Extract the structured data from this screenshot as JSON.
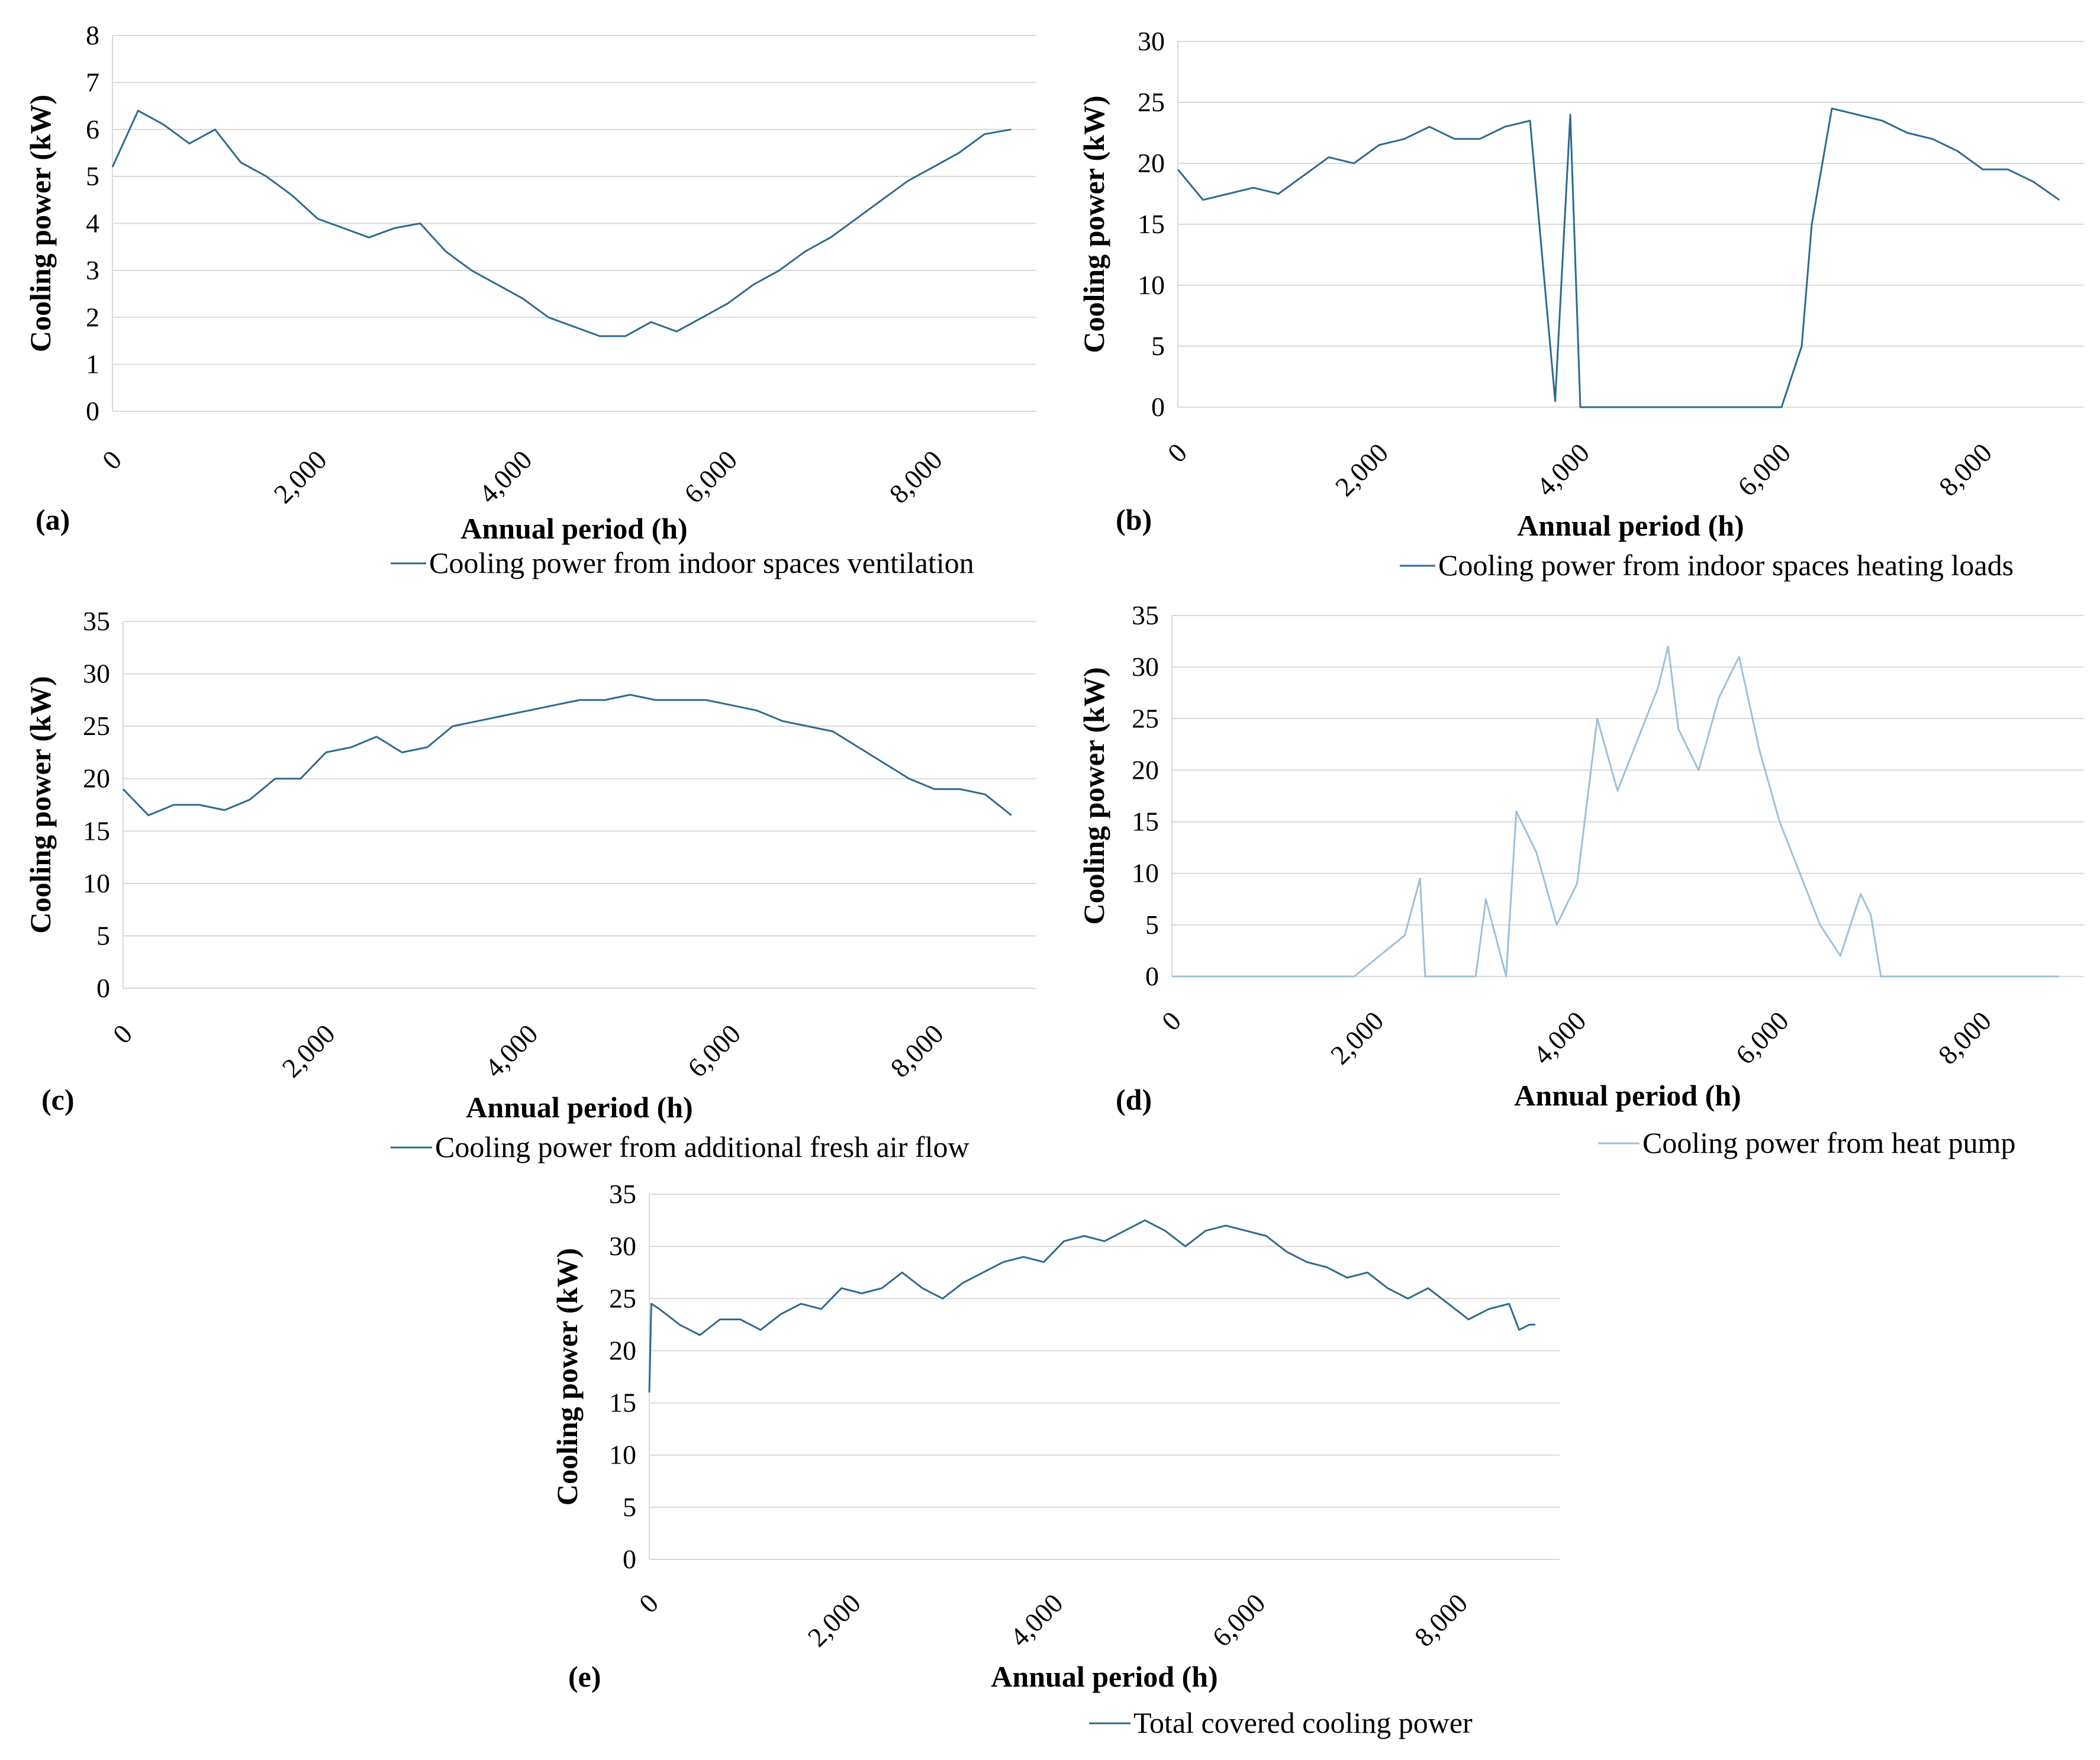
{
  "chart_data": [
    {
      "id": "a",
      "type": "line",
      "panel_label": "(a)",
      "xlabel": "Annual period (h)",
      "ylabel": "Cooling power (kW)",
      "xlim": [
        0,
        9000
      ],
      "ylim": [
        0,
        8
      ],
      "x_ticks": [
        0,
        2000,
        4000,
        6000,
        8000
      ],
      "x_tick_labels": [
        "0",
        "2,000",
        "4,000",
        "6,000",
        "8,000"
      ],
      "y_ticks": [
        0,
        1,
        2,
        3,
        4,
        5,
        6,
        7,
        8
      ],
      "y_tick_labels": [
        "0",
        "1",
        "2",
        "3",
        "4",
        "5",
        "6",
        "7",
        "8"
      ],
      "legend": "Cooling power from indoor spaces ventilation",
      "color": "#2e6a8e",
      "series": [
        {
          "name": "Cooling power from indoor spaces ventilation",
          "x": [
            0,
            250,
            500,
            750,
            1000,
            1250,
            1500,
            1750,
            2000,
            2250,
            2500,
            2750,
            3000,
            3250,
            3500,
            3750,
            4000,
            4250,
            4500,
            4750,
            5000,
            5250,
            5500,
            5750,
            6000,
            6250,
            6500,
            6750,
            7000,
            7250,
            7500,
            7750,
            8000,
            8250,
            8500,
            8760
          ],
          "y": [
            5.2,
            6.4,
            6.1,
            5.7,
            6.0,
            5.3,
            5.0,
            4.6,
            4.1,
            3.9,
            3.7,
            3.9,
            4.0,
            3.4,
            3.0,
            2.7,
            2.4,
            2.0,
            1.8,
            1.6,
            1.6,
            1.9,
            1.7,
            2.0,
            2.3,
            2.7,
            3.0,
            3.4,
            3.7,
            4.1,
            4.5,
            4.9,
            5.2,
            5.5,
            5.9,
            6.0
          ]
        }
      ]
    },
    {
      "id": "b",
      "type": "line",
      "panel_label": "(b)",
      "xlabel": "Annual period (h)",
      "ylabel": "Cooling power (kW)",
      "xlim": [
        0,
        9000
      ],
      "ylim": [
        0,
        30
      ],
      "x_ticks": [
        0,
        2000,
        4000,
        6000,
        8000
      ],
      "x_tick_labels": [
        "0",
        "2,000",
        "4,000",
        "6,000",
        "8,000"
      ],
      "y_ticks": [
        0,
        5,
        10,
        15,
        20,
        25,
        30
      ],
      "y_tick_labels": [
        "0",
        "5",
        "10",
        "15",
        "20",
        "25",
        "30"
      ],
      "legend": "Cooling power from indoor spaces heating loads",
      "color": "#2e6a8e",
      "series": [
        {
          "name": "Cooling power from indoor spaces heating loads",
          "x": [
            0,
            250,
            500,
            750,
            1000,
            1250,
            1500,
            1750,
            2000,
            2250,
            2500,
            2750,
            3000,
            3250,
            3500,
            3750,
            3900,
            4000,
            6000,
            6200,
            6300,
            6500,
            6750,
            7000,
            7250,
            7500,
            7750,
            8000,
            8250,
            8500,
            8760
          ],
          "y": [
            19.5,
            17.0,
            17.5,
            18.0,
            17.5,
            19.0,
            20.5,
            20.0,
            21.5,
            22.0,
            23.0,
            22.0,
            22.0,
            23.0,
            23.5,
            0.5,
            24.0,
            0,
            0,
            5.0,
            15.0,
            24.5,
            24.0,
            23.5,
            22.5,
            22.0,
            21.0,
            19.5,
            19.5,
            18.5,
            17.0
          ]
        }
      ]
    },
    {
      "id": "c",
      "type": "line",
      "panel_label": "(c)",
      "xlabel": "Annual period (h)",
      "ylabel": "Cooling power (kW)",
      "xlim": [
        0,
        9000
      ],
      "ylim": [
        0,
        35
      ],
      "x_ticks": [
        0,
        2000,
        4000,
        6000,
        8000
      ],
      "x_tick_labels": [
        "0",
        "2,000",
        "4,000",
        "6,000",
        "8,000"
      ],
      "y_ticks": [
        0,
        5,
        10,
        15,
        20,
        25,
        30,
        35
      ],
      "y_tick_labels": [
        "0",
        "5",
        "10",
        "15",
        "20",
        "25",
        "30",
        "35"
      ],
      "legend": "Cooling power from additional fresh air flow",
      "color": "#2e6a8e",
      "series": [
        {
          "name": "Cooling power from additional fresh air flow",
          "x": [
            0,
            250,
            500,
            750,
            1000,
            1250,
            1500,
            1750,
            2000,
            2250,
            2500,
            2750,
            3000,
            3250,
            3500,
            3750,
            4000,
            4250,
            4500,
            4750,
            5000,
            5250,
            5500,
            5750,
            6000,
            6250,
            6500,
            6750,
            7000,
            7250,
            7500,
            7750,
            8000,
            8250,
            8500,
            8760
          ],
          "y": [
            19.0,
            16.5,
            17.5,
            17.5,
            17.0,
            18.0,
            20.0,
            20.0,
            22.5,
            23.0,
            24.0,
            22.5,
            23.0,
            25.0,
            25.5,
            26.0,
            26.5,
            27.0,
            27.5,
            27.5,
            28.0,
            27.5,
            27.5,
            27.5,
            27.0,
            26.5,
            25.5,
            25.0,
            24.5,
            23.0,
            21.5,
            20.0,
            19.0,
            19.0,
            18.5,
            16.5
          ]
        }
      ]
    },
    {
      "id": "d",
      "type": "line",
      "panel_label": "(d)",
      "xlabel": "Annual period (h)",
      "ylabel": "Cooling power (kW)",
      "xlim": [
        0,
        9000
      ],
      "ylim": [
        0,
        35
      ],
      "x_ticks": [
        0,
        2000,
        4000,
        6000,
        8000
      ],
      "x_tick_labels": [
        "0",
        "2,000",
        "4,000",
        "6,000",
        "8,000"
      ],
      "y_ticks": [
        0,
        5,
        10,
        15,
        20,
        25,
        30,
        35
      ],
      "y_tick_labels": [
        "0",
        "5",
        "10",
        "15",
        "20",
        "25",
        "30",
        "35"
      ],
      "legend": "Cooling power from heat pump",
      "color": "#9fc0d8",
      "series": [
        {
          "name": "Cooling power from heat pump",
          "x": [
            0,
            1800,
            2300,
            2450,
            2500,
            3000,
            3100,
            3300,
            3400,
            3600,
            3800,
            4000,
            4200,
            4400,
            4600,
            4800,
            4900,
            5000,
            5200,
            5400,
            5600,
            5800,
            6000,
            6200,
            6400,
            6600,
            6800,
            6900,
            7000,
            8760
          ],
          "y": [
            0,
            0,
            4.0,
            9.5,
            0,
            0,
            7.5,
            0,
            16.0,
            12.0,
            5.0,
            9.0,
            25.0,
            18.0,
            23.0,
            28.0,
            32.0,
            24.0,
            20.0,
            27.0,
            31.0,
            22.0,
            15.0,
            10.0,
            5.0,
            2.0,
            8.0,
            6.0,
            0,
            0
          ]
        }
      ]
    },
    {
      "id": "e",
      "type": "line",
      "panel_label": "(e)",
      "xlabel": "Annual period (h)",
      "ylabel": "Cooling power (kW)",
      "xlim": [
        0,
        9000
      ],
      "ylim": [
        0,
        35
      ],
      "x_ticks": [
        0,
        2000,
        4000,
        6000,
        8000
      ],
      "x_tick_labels": [
        "0",
        "2,000",
        "4,000",
        "6,000",
        "8,000"
      ],
      "y_ticks": [
        0,
        5,
        10,
        15,
        20,
        25,
        30,
        35
      ],
      "y_tick_labels": [
        "0",
        "5",
        "10",
        "15",
        "20",
        "25",
        "30",
        "35"
      ],
      "legend": "Total covered cooling power",
      "color": "#2e6a8e",
      "series": [
        {
          "name": "Total covered cooling power",
          "x": [
            0,
            20,
            100,
            300,
            500,
            700,
            900,
            1100,
            1300,
            1500,
            1700,
            1900,
            2100,
            2300,
            2500,
            2700,
            2900,
            3100,
            3300,
            3500,
            3700,
            3900,
            4100,
            4300,
            4500,
            4700,
            4900,
            5100,
            5300,
            5500,
            5700,
            5900,
            6100,
            6300,
            6500,
            6700,
            6900,
            7100,
            7300,
            7500,
            7700,
            7900,
            8100,
            8300,
            8500,
            8600,
            8700,
            8760
          ],
          "y": [
            16.0,
            24.5,
            24.0,
            22.5,
            21.5,
            23.0,
            23.0,
            22.0,
            23.5,
            24.5,
            24.0,
            26.0,
            25.5,
            26.0,
            27.5,
            26.0,
            25.0,
            26.5,
            27.5,
            28.5,
            29.0,
            28.5,
            30.5,
            31.0,
            30.5,
            31.5,
            32.5,
            31.5,
            30.0,
            31.5,
            32.0,
            31.5,
            31.0,
            29.5,
            28.5,
            28.0,
            27.0,
            27.5,
            26.0,
            25.0,
            26.0,
            24.5,
            23.0,
            24.0,
            24.5,
            22.0,
            22.5,
            22.5
          ]
        }
      ]
    }
  ]
}
